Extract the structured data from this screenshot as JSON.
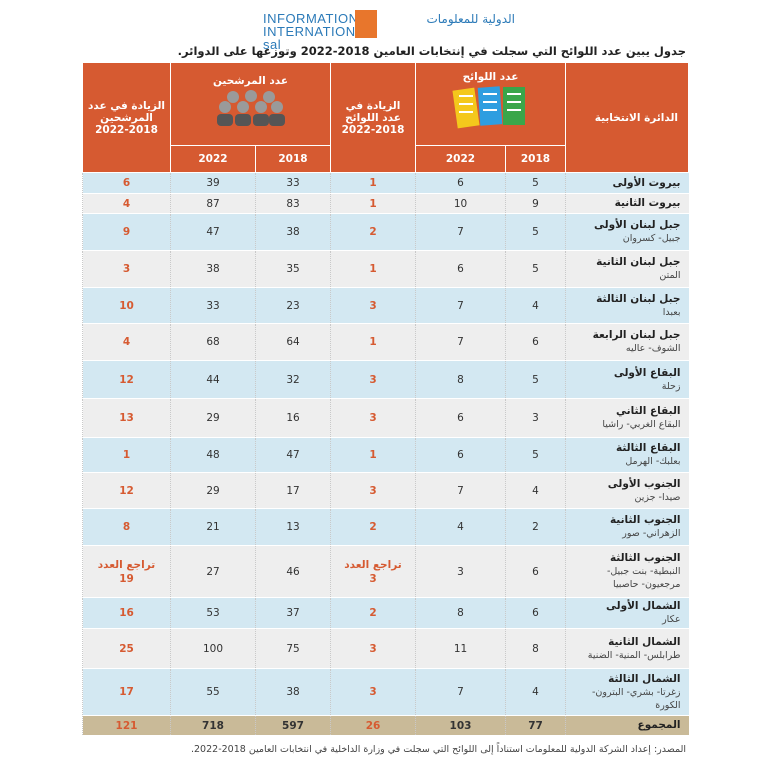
{
  "header": {
    "logo_en": "INFORMATION INTERNATIONAL sal",
    "logo_ar": "الدولية للمعلومات",
    "title": "جدول يبين عدد اللوائح التي سجلت في إنتخابات العامين 2018-2022 وتوزعها على الدوائر."
  },
  "table": {
    "headers": {
      "district": "الدائرة الانتخابية",
      "lists": "عدد اللوائح",
      "lists_increase": "الزيادة في عدد اللوائح 2018-2022",
      "candidates": "عدد المرشحين",
      "candidates_increase": "الزيادة في عدد المرشحين 2018-2022"
    },
    "years": [
      "2018",
      "2022"
    ],
    "rows": [
      {
        "district": "بيروت الأولى",
        "lists": [
          5,
          6,
          1
        ],
        "candidates": [
          33,
          39,
          6
        ]
      },
      {
        "district": "بيروت الثانية",
        "lists": [
          9,
          10,
          1
        ],
        "candidates": [
          83,
          87,
          4
        ]
      },
      {
        "district": "جبل لبنان الأولى",
        "area": "جبيل- كسروان",
        "lists": [
          5,
          7,
          2
        ],
        "candidates": [
          38,
          47,
          9
        ]
      },
      {
        "district": "جبل لبنان الثانية",
        "area": "المتن",
        "lists": [
          5,
          6,
          1
        ],
        "candidates": [
          35,
          38,
          3
        ]
      },
      {
        "district": "جبل لبنان الثالثة",
        "area": "بعبدا",
        "lists": [
          4,
          7,
          3
        ],
        "candidates": [
          23,
          33,
          10
        ]
      },
      {
        "district": "جبل لبنان الرابعة",
        "area": "الشوف- عاليه",
        "lists": [
          6,
          7,
          1
        ],
        "candidates": [
          64,
          68,
          4
        ]
      },
      {
        "district": "البقاع الأولى",
        "area": "زحلة",
        "lists": [
          5,
          8,
          3
        ],
        "candidates": [
          32,
          44,
          12
        ]
      },
      {
        "district": "البقاع الثاني",
        "area": "البقاع الغربي- راشيا",
        "lists": [
          3,
          6,
          3
        ],
        "candidates": [
          16,
          29,
          13
        ]
      },
      {
        "district": "البقاع الثالثة",
        "area": "بعلبك- الهرمل",
        "lists": [
          5,
          6,
          1
        ],
        "candidates": [
          47,
          48,
          1
        ]
      },
      {
        "district": "الجنوب الأولى",
        "area": "صيدا- جزين",
        "lists": [
          4,
          7,
          3
        ],
        "candidates": [
          17,
          29,
          12
        ]
      },
      {
        "district": "الجنوب الثانية",
        "area": "الزهراني- صور",
        "lists": [
          2,
          4,
          2
        ],
        "candidates": [
          13,
          21,
          8
        ]
      },
      {
        "district": "الجنوب الثالثة",
        "area": "النبطية- بنت جبيل- مرجعيون- حاصبيا",
        "lists": [
          6,
          3,
          {
            "note": "تراجع العدد",
            "value": 3
          }
        ],
        "candidates": [
          46,
          27,
          {
            "note": "تراجع العدد",
            "value": 19
          }
        ]
      },
      {
        "district": "الشمال الأولى",
        "area": "عكار",
        "lists": [
          6,
          8,
          2
        ],
        "candidates": [
          37,
          53,
          16
        ]
      },
      {
        "district": "الشمال الثانية",
        "area": "طرابلس- المنية- الضنية",
        "lists": [
          8,
          11,
          3
        ],
        "candidates": [
          75,
          100,
          25
        ]
      },
      {
        "district": "الشمال الثالثة",
        "area": "زغرتا- بشري- البترون- الكورة",
        "lists": [
          4,
          7,
          3
        ],
        "candidates": [
          38,
          55,
          17
        ]
      }
    ],
    "total": {
      "label": "المجموع",
      "lists": [
        77,
        103,
        26
      ],
      "candidates": [
        597,
        718,
        121
      ]
    }
  },
  "source": "المصدر: إعداد الشركة الدولية للمعلومات استناداً إلى اللوائح التي سجلت في وزارة الداخلية في انتخابات العامين 2018-2022."
}
